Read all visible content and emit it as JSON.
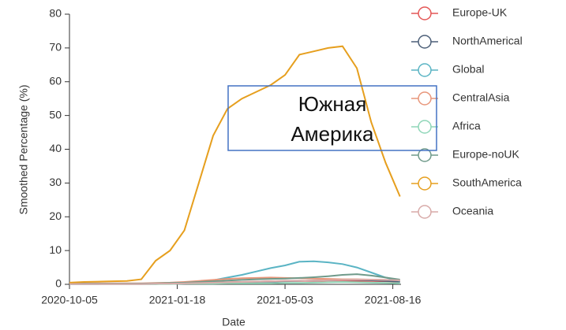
{
  "chart_data": {
    "type": "line",
    "x_label": "Date",
    "y_label": "Smoothed Percentage (%)",
    "annotation": [
      "Южная",
      "Америка"
    ],
    "x": [
      "2020-10-05",
      "2020-10-19",
      "2020-11-02",
      "2020-11-16",
      "2020-11-30",
      "2020-12-14",
      "2020-12-28",
      "2021-01-11",
      "2021-01-25",
      "2021-02-08",
      "2021-02-22",
      "2021-03-08",
      "2021-03-22",
      "2021-04-05",
      "2021-04-19",
      "2021-05-03",
      "2021-05-17",
      "2021-05-31",
      "2021-06-14",
      "2021-06-28",
      "2021-07-12",
      "2021-07-26",
      "2021-08-09",
      "2021-08-23"
    ],
    "xlim": [
      "2020-10-05",
      "2021-08-24"
    ],
    "xticks": [
      "2020-10-05",
      "2021-01-18",
      "2021-05-03",
      "2021-08-16"
    ],
    "ylim": [
      0,
      80
    ],
    "yticks": [
      0,
      10,
      20,
      30,
      40,
      50,
      60,
      70,
      80
    ],
    "grid": false,
    "legend": "right",
    "series": [
      {
        "name": "Europe-UK",
        "color": "#e45756",
        "values": [
          0.2,
          0.2,
          0.2,
          0.2,
          0.2,
          0.2,
          0.2,
          0.3,
          0.3,
          0.4,
          0.5,
          0.6,
          0.7,
          0.8,
          0.9,
          1.0,
          1.0,
          1.0,
          1.1,
          1.1,
          1.0,
          1.0,
          0.9,
          0.8
        ]
      },
      {
        "name": "NorthAmerical",
        "color": "#4c5f78",
        "values": [
          0.1,
          0.1,
          0.1,
          0.1,
          0.1,
          0.1,
          0.1,
          0.2,
          0.2,
          0.3,
          0.4,
          0.5,
          0.6,
          0.7,
          0.8,
          0.9,
          1.0,
          1.1,
          1.2,
          1.3,
          1.3,
          1.2,
          1.0,
          0.8
        ]
      },
      {
        "name": "Global",
        "color": "#5ab4c4",
        "values": [
          0.1,
          0.1,
          0.1,
          0.2,
          0.2,
          0.2,
          0.3,
          0.4,
          0.5,
          0.8,
          1.2,
          2.0,
          2.8,
          3.8,
          4.8,
          5.6,
          6.7,
          6.8,
          6.5,
          6.0,
          5.0,
          3.5,
          2.0,
          1.0
        ]
      },
      {
        "name": "CentralAsia",
        "color": "#e8967a",
        "values": [
          0.3,
          0.3,
          0.3,
          0.3,
          0.3,
          0.3,
          0.4,
          0.5,
          0.7,
          1.0,
          1.3,
          1.6,
          1.8,
          1.9,
          2.0,
          1.9,
          1.8,
          1.7,
          1.6,
          1.5,
          1.5,
          1.4,
          1.3,
          1.2
        ]
      },
      {
        "name": "Africa",
        "color": "#8fd6b8",
        "values": [
          0.1,
          0.1,
          0.1,
          0.1,
          0.1,
          0.1,
          0.1,
          0.1,
          0.2,
          0.2,
          0.2,
          0.3,
          0.3,
          0.3,
          0.3,
          0.4,
          0.4,
          0.5,
          0.6,
          0.7,
          0.6,
          0.5,
          0.4,
          0.3
        ]
      },
      {
        "name": "Europe-noUK",
        "color": "#6f9a8a",
        "values": [
          0.2,
          0.2,
          0.2,
          0.2,
          0.2,
          0.2,
          0.3,
          0.4,
          0.5,
          0.7,
          0.9,
          1.1,
          1.3,
          1.5,
          1.6,
          1.7,
          1.9,
          2.1,
          2.4,
          2.8,
          3.0,
          2.6,
          2.0,
          1.4
        ]
      },
      {
        "name": "SouthAmerica",
        "color": "#e69f1e",
        "values": [
          0.5,
          0.7,
          0.8,
          0.9,
          1.0,
          1.5,
          7,
          10,
          16,
          30,
          44,
          52,
          55,
          57,
          59,
          62,
          68,
          69,
          70,
          70.5,
          64,
          48,
          36,
          26
        ]
      },
      {
        "name": "Oceania",
        "color": "#d8aaa8",
        "values": [
          0.1,
          0.1,
          0.1,
          0.1,
          0.1,
          0.1,
          0.2,
          0.2,
          0.3,
          0.4,
          0.5,
          0.6,
          0.7,
          0.8,
          0.9,
          1.0,
          1.0,
          1.1,
          1.2,
          1.3,
          1.4,
          1.4,
          1.3,
          1.2
        ]
      }
    ]
  }
}
